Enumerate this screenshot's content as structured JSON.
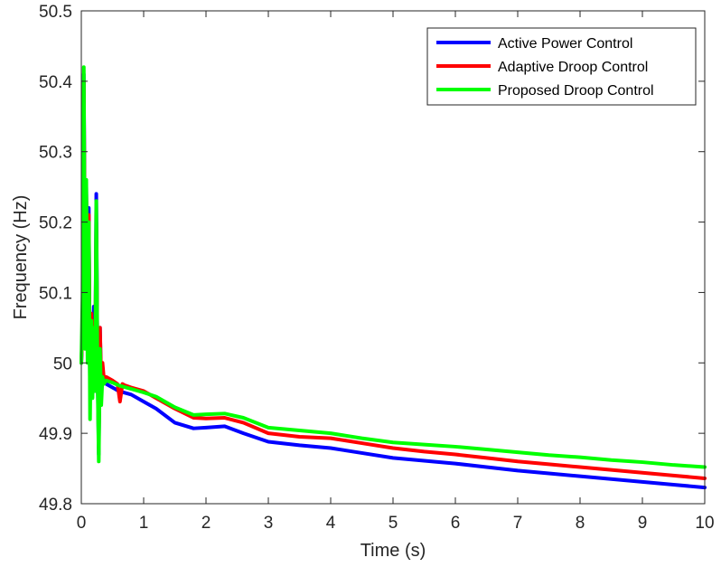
{
  "chart_data": {
    "type": "line",
    "title": "",
    "xlabel": "Time (s)",
    "ylabel": "Frequency (Hz)",
    "xlim": [
      0,
      10
    ],
    "ylim": [
      49.8,
      50.5
    ],
    "xticks": [
      0,
      1,
      2,
      3,
      4,
      5,
      6,
      7,
      8,
      9,
      10
    ],
    "xtick_labels": [
      "0",
      "1",
      "2",
      "3",
      "4",
      "5",
      "6",
      "7",
      "8",
      "9",
      "10"
    ],
    "yticks": [
      49.8,
      49.9,
      50,
      50.1,
      50.2,
      50.3,
      50.4,
      50.5
    ],
    "ytick_labels": [
      "49.8",
      "49.9",
      "50",
      "50.1",
      "50.2",
      "50.3",
      "50.4",
      "50.5"
    ],
    "grid": false,
    "legend_position": "top-right",
    "series": [
      {
        "name": "Active Power Control",
        "color": "#0000ff",
        "x": [
          0,
          0.02,
          0.04,
          0.06,
          0.08,
          0.1,
          0.12,
          0.14,
          0.16,
          0.18,
          0.2,
          0.22,
          0.24,
          0.26,
          0.28,
          0.3,
          0.32,
          0.34,
          0.36,
          0.4,
          0.5,
          0.6,
          0.8,
          1.0,
          1.2,
          1.5,
          1.8,
          2.0,
          2.3,
          2.6,
          3.0,
          3.5,
          4.0,
          4.5,
          5.0,
          5.5,
          6.0,
          6.5,
          7.0,
          7.5,
          8.0,
          8.5,
          9.0,
          9.5,
          10.0
        ],
        "y": [
          50.0,
          50.05,
          50.41,
          50.12,
          50.25,
          50.03,
          50.22,
          49.95,
          50.06,
          49.97,
          50.08,
          49.96,
          50.24,
          49.99,
          49.87,
          50.05,
          49.96,
          49.99,
          49.975,
          49.97,
          49.965,
          49.96,
          49.955,
          49.945,
          49.935,
          49.915,
          49.907,
          49.908,
          49.91,
          49.9,
          49.888,
          49.883,
          49.879,
          49.872,
          49.865,
          49.861,
          49.857,
          49.852,
          49.847,
          49.843,
          49.839,
          49.835,
          49.831,
          49.827,
          49.823
        ]
      },
      {
        "name": "Adaptive Droop Control",
        "color": "#ff0000",
        "x": [
          0,
          0.02,
          0.04,
          0.06,
          0.08,
          0.1,
          0.12,
          0.14,
          0.16,
          0.18,
          0.2,
          0.22,
          0.24,
          0.26,
          0.28,
          0.3,
          0.32,
          0.34,
          0.36,
          0.4,
          0.5,
          0.58,
          0.62,
          0.66,
          0.7,
          0.8,
          1.0,
          1.2,
          1.5,
          1.8,
          2.0,
          2.3,
          2.6,
          3.0,
          3.5,
          4.0,
          4.5,
          5.0,
          5.5,
          6.0,
          6.5,
          7.0,
          7.5,
          8.0,
          8.5,
          9.0,
          9.5,
          10.0
        ],
        "y": [
          50.0,
          50.05,
          50.4,
          50.1,
          50.24,
          50.04,
          50.21,
          49.96,
          50.07,
          49.97,
          50.06,
          49.98,
          50.2,
          50.0,
          49.88,
          50.05,
          49.97,
          50.0,
          49.98,
          49.98,
          49.975,
          49.97,
          49.945,
          49.97,
          49.968,
          49.965,
          49.96,
          49.95,
          49.935,
          49.922,
          49.921,
          49.922,
          49.915,
          49.9,
          49.895,
          49.893,
          49.886,
          49.879,
          49.874,
          49.87,
          49.865,
          49.86,
          49.856,
          49.852,
          49.848,
          49.844,
          49.84,
          49.836
        ]
      },
      {
        "name": "Proposed Droop Control",
        "color": "#00ff00",
        "x": [
          0,
          0.02,
          0.04,
          0.06,
          0.08,
          0.1,
          0.12,
          0.14,
          0.16,
          0.18,
          0.2,
          0.22,
          0.24,
          0.26,
          0.28,
          0.3,
          0.32,
          0.34,
          0.36,
          0.4,
          0.5,
          0.6,
          0.8,
          1.0,
          1.2,
          1.5,
          1.8,
          2.0,
          2.3,
          2.6,
          3.0,
          3.5,
          4.0,
          4.5,
          5.0,
          5.5,
          6.0,
          6.5,
          7.0,
          7.5,
          8.0,
          8.5,
          9.0,
          9.5,
          10.0
        ],
        "y": [
          50.0,
          50.1,
          50.42,
          50.02,
          50.26,
          50.0,
          50.2,
          49.92,
          50.06,
          49.95,
          50.05,
          49.96,
          50.23,
          49.98,
          49.86,
          50.02,
          49.94,
          49.98,
          49.97,
          49.975,
          49.972,
          49.968,
          49.963,
          49.958,
          49.952,
          49.937,
          49.926,
          49.927,
          49.928,
          49.922,
          49.908,
          49.904,
          49.9,
          49.893,
          49.887,
          49.884,
          49.881,
          49.877,
          49.873,
          49.869,
          49.866,
          49.862,
          49.859,
          49.855,
          49.852
        ]
      }
    ]
  }
}
